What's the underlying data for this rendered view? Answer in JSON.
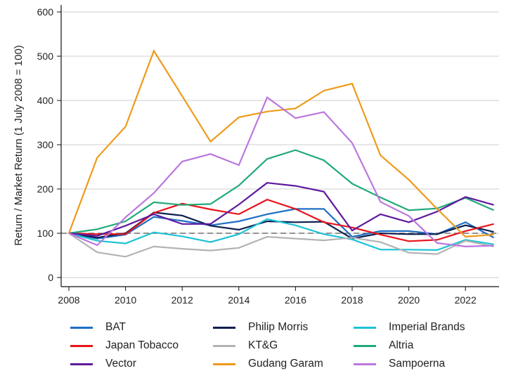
{
  "chart_data": {
    "type": "line",
    "title": "",
    "xlabel": "",
    "ylabel": "Return / Market Return (1 July 2008 = 100)",
    "xlim": [
      2008,
      2023
    ],
    "ylim": [
      0,
      600
    ],
    "x_ticks": [
      2008,
      2010,
      2012,
      2014,
      2016,
      2018,
      2020,
      2022
    ],
    "y_ticks": [
      0,
      100,
      200,
      300,
      400,
      500,
      600
    ],
    "grid": "horizontal",
    "reference_line": {
      "y": 100,
      "style": "dashed"
    },
    "legend_position": "bottom",
    "x": [
      2008,
      2009,
      2010,
      2011,
      2012,
      2013,
      2014,
      2015,
      2016,
      2017,
      2018,
      2019,
      2020,
      2021,
      2022,
      2023
    ],
    "series": [
      {
        "name": "BAT",
        "color": "#1f6fc5",
        "values": [
          100,
          88,
          97,
          137,
          128,
          118,
          127,
          143,
          155,
          155,
          92,
          105,
          105,
          98,
          125,
          90
        ]
      },
      {
        "name": "Philip Morris",
        "color": "#0d1f4f",
        "values": [
          100,
          90,
          100,
          147,
          140,
          117,
          108,
          127,
          125,
          126,
          88,
          100,
          98,
          98,
          118,
          103
        ]
      },
      {
        "name": "Imperial Brands",
        "color": "#1cc3d6",
        "values": [
          100,
          83,
          77,
          102,
          93,
          80,
          98,
          132,
          118,
          98,
          86,
          63,
          63,
          62,
          85,
          75
        ]
      },
      {
        "name": "Japan Tobacco",
        "color": "#e8141b",
        "values": [
          100,
          98,
          98,
          146,
          167,
          154,
          143,
          176,
          155,
          125,
          113,
          97,
          82,
          85,
          105,
          121
        ]
      },
      {
        "name": "KT&G",
        "color": "#b3b3b3",
        "values": [
          100,
          57,
          47,
          70,
          65,
          61,
          67,
          92,
          88,
          84,
          90,
          80,
          56,
          53,
          83,
          70
        ]
      },
      {
        "name": "Altria",
        "color": "#1faa7a",
        "values": [
          100,
          109,
          127,
          170,
          164,
          166,
          208,
          268,
          288,
          265,
          212,
          181,
          152,
          156,
          180,
          152
        ]
      },
      {
        "name": "Vector",
        "color": "#5e1a9e",
        "values": [
          100,
          94,
          117,
          143,
          121,
          121,
          165,
          214,
          207,
          194,
          106,
          143,
          125,
          149,
          182,
          164
        ]
      },
      {
        "name": "Gudang Garam",
        "color": "#ee9a1a",
        "values": [
          100,
          271,
          341,
          512,
          410,
          307,
          362,
          375,
          382,
          422,
          438,
          276,
          221,
          155,
          92,
          97
        ]
      },
      {
        "name": "Sampoerna",
        "color": "#bb77dd",
        "values": [
          100,
          73,
          136,
          191,
          262,
          279,
          254,
          407,
          360,
          374,
          304,
          171,
          139,
          78,
          70,
          72
        ]
      }
    ]
  },
  "legend": {
    "items": [
      {
        "label": "BAT",
        "color": "#1f6fc5"
      },
      {
        "label": "Philip Morris",
        "color": "#0d1f4f"
      },
      {
        "label": "Imperial Brands",
        "color": "#1cc3d6"
      },
      {
        "label": "Japan Tobacco",
        "color": "#e8141b"
      },
      {
        "label": "KT&G",
        "color": "#b3b3b3"
      },
      {
        "label": "Altria",
        "color": "#1faa7a"
      },
      {
        "label": "Vector",
        "color": "#5e1a9e"
      },
      {
        "label": "Gudang Garam",
        "color": "#ee9a1a"
      },
      {
        "label": "Sampoerna",
        "color": "#bb77dd"
      }
    ]
  }
}
